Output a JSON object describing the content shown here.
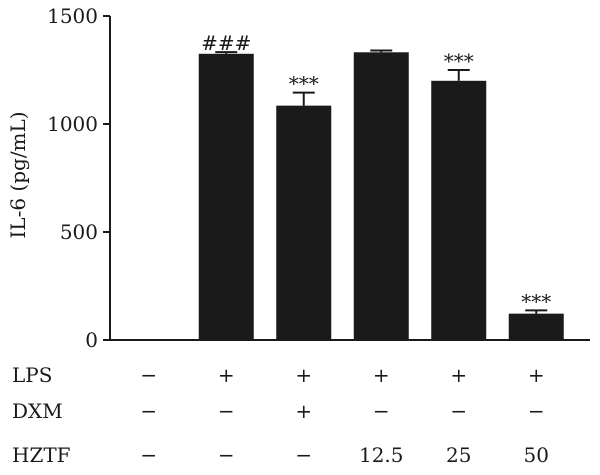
{
  "chart_data": {
    "type": "bar",
    "ylabel": "IL-6 (pg/mL)",
    "ylim": [
      0,
      1500
    ],
    "yticks": [
      0,
      500,
      1000,
      1500
    ],
    "grid": false,
    "bar_color": "#1a1a1a",
    "values": [
      0,
      1325,
      1085,
      1332,
      1200,
      122
    ],
    "errors": [
      0,
      8,
      60,
      8,
      50,
      15
    ],
    "significance": [
      "",
      "###",
      "***",
      "",
      "***",
      "***"
    ],
    "conditions": [
      {
        "label": "LPS",
        "values": [
          "−",
          "+",
          "+",
          "+",
          "+",
          "+"
        ]
      },
      {
        "label": "DXM",
        "values": [
          "−",
          "−",
          "+",
          "−",
          "−",
          "−"
        ]
      },
      {
        "label": "HZTF",
        "values": [
          "−",
          "−",
          "−",
          "12.5",
          "25",
          "50"
        ]
      }
    ]
  }
}
